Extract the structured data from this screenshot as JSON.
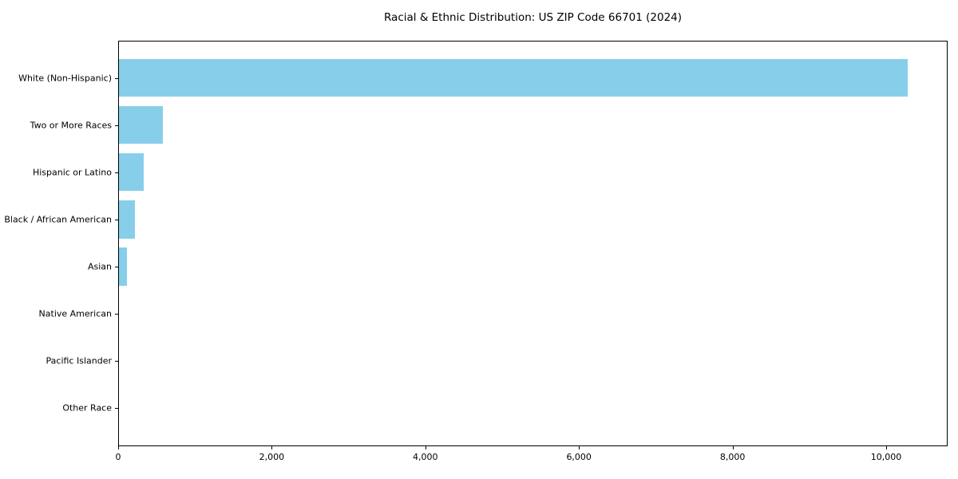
{
  "chart_data": {
    "type": "bar",
    "orientation": "horizontal",
    "title": "Racial & Ethnic Distribution: US ZIP Code 66701 (2024)",
    "categories": [
      "White (Non-Hispanic)",
      "Two or More Races",
      "Hispanic or Latino",
      "Black / African American",
      "Asian",
      "Native American",
      "Pacific Islander",
      "Other Race"
    ],
    "values": [
      10270,
      570,
      320,
      210,
      100,
      0,
      0,
      0
    ],
    "xlabel": "",
    "ylabel": "",
    "xlim": [
      0,
      10790
    ],
    "xticks": [
      0,
      2000,
      4000,
      6000,
      8000,
      10000
    ],
    "xtick_labels": [
      "0",
      "2,000",
      "4,000",
      "6,000",
      "8,000",
      "10,000"
    ],
    "bar_color": "#87CEEB",
    "background_color": "#ffffff",
    "axis_color": "#000000",
    "grid": false,
    "legend": null
  }
}
